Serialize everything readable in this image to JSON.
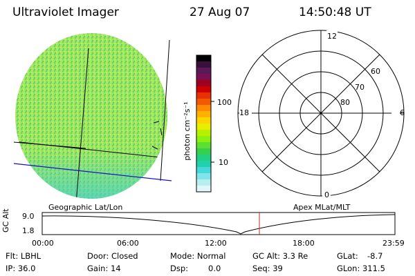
{
  "header": {
    "title": "Ultraviolet Imager",
    "date": "27 Aug 07",
    "time": "14:50:48 UT"
  },
  "colorbar": {
    "unit_label": "photon cm⁻²s⁻¹",
    "tick_labels": [
      "100",
      "10"
    ],
    "colors": [
      "#000000",
      "#3a0f3c",
      "#5a1a5a",
      "#7a1050",
      "#a00020",
      "#cc0000",
      "#e83000",
      "#f05a00",
      "#ff8a00",
      "#ffb000",
      "#ffd500",
      "#e8ee00",
      "#b8f000",
      "#8cf010",
      "#5de030",
      "#36d050",
      "#22d080",
      "#22d0b0",
      "#44d8d8",
      "#80e4e8",
      "#b8eef0",
      "#e0f6f8"
    ]
  },
  "image_panel": {
    "title": "Geographic Lat/Lon"
  },
  "polar_plot": {
    "title": "Apex MLat/MLT",
    "mlt_labels": [
      "12",
      "18",
      "6",
      "0"
    ],
    "mlat_labels": [
      "60",
      "70",
      "80"
    ]
  },
  "timeline": {
    "y_axis_label": "GC Alt",
    "y_ticks": [
      "9.0",
      "1.8"
    ],
    "x_ticks": [
      "00:00",
      "06:00",
      "12:00",
      "18:00",
      "23:59"
    ],
    "marker_color": "#cc2222"
  },
  "status": {
    "filter": "Flt: LBHL",
    "ip": "IP: 36.0",
    "door": "Door: Closed",
    "gain": "Gain: 14",
    "mode": "Mode: Normal",
    "dsp_label": "Dsp:",
    "dsp_value": "0.0",
    "gc_alt": "GC Alt: 3.3 Re",
    "seq": "Seq: 39",
    "glat_label": "GLat:",
    "glat_value": "-8.7",
    "glon": "GLon: 311.5"
  }
}
